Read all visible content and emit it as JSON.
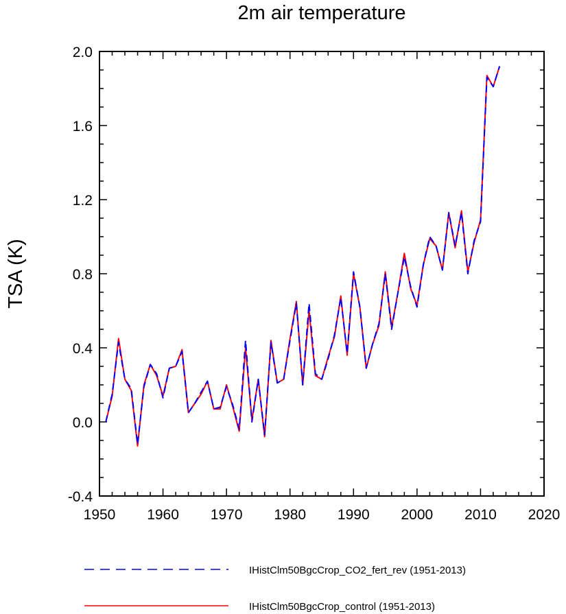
{
  "chart_data": {
    "type": "line",
    "title": "2m air temperature",
    "xlabel": "",
    "ylabel": "TSA  (K)",
    "xlim": [
      1950,
      2020
    ],
    "ylim": [
      -0.4,
      2.0
    ],
    "xticks": [
      "1950",
      "1960",
      "1970",
      "1980",
      "1990",
      "2000",
      "2010",
      "2020"
    ],
    "yticks": [
      "-0.4",
      "0.0",
      "0.4",
      "0.8",
      "1.2",
      "1.6",
      "2.0"
    ],
    "grid": false,
    "legend_position": "bottom",
    "x": [
      1951,
      1952,
      1953,
      1954,
      1955,
      1956,
      1957,
      1958,
      1959,
      1960,
      1961,
      1962,
      1963,
      1964,
      1965,
      1966,
      1967,
      1968,
      1969,
      1970,
      1971,
      1972,
      1973,
      1974,
      1975,
      1976,
      1977,
      1978,
      1979,
      1980,
      1981,
      1982,
      1983,
      1984,
      1985,
      1986,
      1987,
      1988,
      1989,
      1990,
      1991,
      1992,
      1993,
      1994,
      1995,
      1996,
      1997,
      1998,
      1999,
      2000,
      2001,
      2002,
      2003,
      2004,
      2005,
      2006,
      2007,
      2008,
      2009,
      2010,
      2011,
      2012,
      2013
    ],
    "series": [
      {
        "name": "IHistClm50BgcCrop_CO2_fert_rev (1951-2013)",
        "color": "#0000ff",
        "dash": "dashed",
        "values": [
          0.0,
          0.15,
          0.43,
          0.23,
          0.18,
          -0.12,
          0.19,
          0.31,
          0.26,
          0.13,
          0.29,
          0.3,
          0.38,
          0.05,
          0.1,
          0.16,
          0.22,
          0.07,
          0.08,
          0.19,
          0.09,
          -0.04,
          0.44,
          0.0,
          0.23,
          -0.07,
          0.43,
          0.21,
          0.23,
          0.44,
          0.64,
          0.2,
          0.64,
          0.26,
          0.23,
          0.34,
          0.47,
          0.67,
          0.37,
          0.81,
          0.62,
          0.29,
          0.42,
          0.53,
          0.8,
          0.5,
          0.7,
          0.89,
          0.73,
          0.62,
          0.85,
          1.0,
          0.95,
          0.82,
          1.13,
          0.95,
          1.13,
          0.8,
          0.98,
          1.08,
          1.86,
          1.81,
          1.92
        ]
      },
      {
        "name": "IHistClm50BgcCrop_control (1951-2013)",
        "color": "#ff0000",
        "dash": "solid",
        "values": [
          0.0,
          0.14,
          0.45,
          0.23,
          0.17,
          -0.13,
          0.2,
          0.31,
          0.25,
          0.14,
          0.29,
          0.3,
          0.39,
          0.05,
          0.1,
          0.15,
          0.22,
          0.07,
          0.07,
          0.2,
          0.08,
          -0.05,
          0.4,
          0.01,
          0.23,
          -0.08,
          0.44,
          0.21,
          0.23,
          0.45,
          0.65,
          0.2,
          0.6,
          0.25,
          0.23,
          0.35,
          0.46,
          0.68,
          0.36,
          0.8,
          0.62,
          0.29,
          0.42,
          0.52,
          0.81,
          0.51,
          0.7,
          0.91,
          0.72,
          0.63,
          0.85,
          0.99,
          0.95,
          0.82,
          1.13,
          0.94,
          1.14,
          0.81,
          0.97,
          1.09,
          1.87,
          1.81,
          1.92
        ]
      }
    ]
  }
}
